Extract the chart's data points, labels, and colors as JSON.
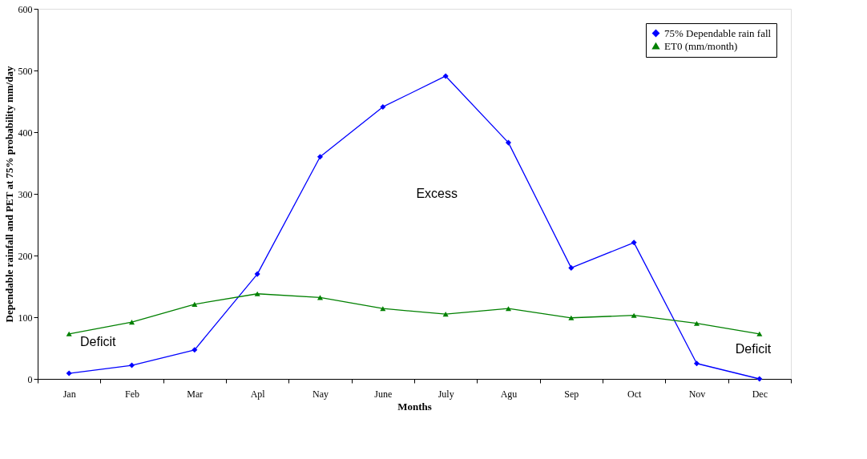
{
  "chart_data": {
    "type": "line",
    "xlabel": "Months",
    "ylabel": "Dependable rainfall and PET at 75% probability mm/day",
    "categories": [
      "Jan",
      "Feb",
      "Mar",
      "Apl",
      "Nay",
      "June",
      "July",
      "Agu",
      "Sep",
      "Oct",
      "Nov",
      "Dec"
    ],
    "series": [
      {
        "name": "75% Dependable rain fall",
        "color": "#0000ff",
        "marker": "diamond",
        "values": [
          9,
          22,
          47,
          170,
          360,
          441,
          491,
          383,
          180,
          221,
          25,
          0
        ]
      },
      {
        "name": "ET0 (mm/month)",
        "color": "#008000",
        "marker": "triangle",
        "values": [
          73,
          92,
          121,
          138,
          132,
          114,
          105,
          114,
          99,
          103,
          90,
          73
        ]
      }
    ],
    "ylim": [
      0,
      600
    ],
    "yticks": [
      0,
      100,
      200,
      300,
      400,
      500,
      600
    ],
    "grid": false,
    "legend": "top right",
    "line_style": "solid",
    "annotations": [
      "Excess",
      "Deficit",
      "Deficit"
    ]
  }
}
